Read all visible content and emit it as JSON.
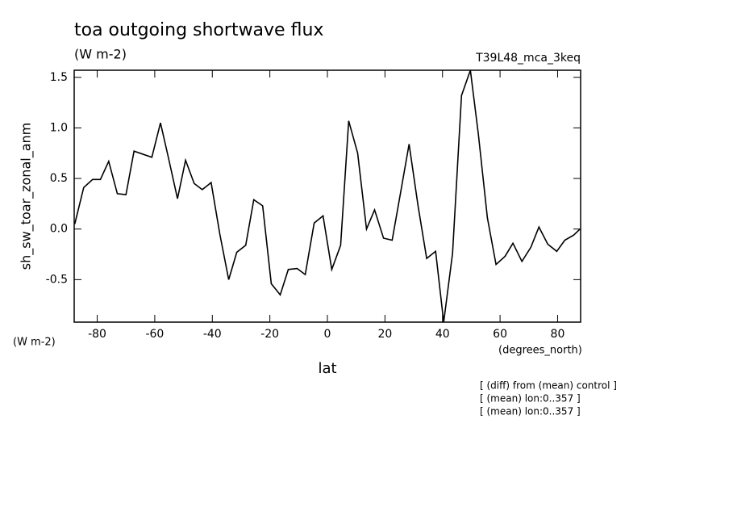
{
  "chart_data": {
    "type": "line",
    "title": "toa outgoing shortwave flux",
    "subtitle": "(W m-2)",
    "run_label": "T39L48_mca_3keq",
    "y_label": "sh_sw_toar_zonal_anm",
    "y_unit": "(W m-2)",
    "x_label": "lat",
    "x_unit": "(degrees_north)",
    "notes": [
      "[ (diff) from (mean) control ]",
      "[ (mean) lon:0..357 ]",
      "[ (mean) lon:0..357 ]"
    ],
    "color": "#000000",
    "x": [
      -87.8,
      -84.7,
      -81.6,
      -78.9,
      -76.0,
      -73.0,
      -70.0,
      -67.2,
      -61.0,
      -58.0,
      -55.2,
      -52.1,
      -49.3,
      -46.3,
      -43.5,
      -40.4,
      -37.4,
      -34.3,
      -31.5,
      -28.4,
      -25.6,
      -22.5,
      -19.5,
      -16.4,
      -13.6,
      -10.5,
      -7.7,
      -4.6,
      -1.5,
      1.5,
      4.6,
      7.4,
      10.5,
      13.6,
      16.4,
      19.5,
      22.5,
      25.3,
      28.4,
      31.5,
      34.5,
      37.6,
      40.4,
      43.5,
      46.6,
      49.7,
      52.5,
      55.6,
      58.6,
      61.7,
      64.5,
      67.6,
      70.7,
      73.5,
      76.6,
      79.7,
      82.5,
      85.6,
      87.8
    ],
    "values": [
      0.05,
      0.41,
      0.49,
      0.49,
      0.67,
      0.35,
      0.34,
      0.77,
      0.71,
      1.05,
      0.7,
      0.3,
      0.68,
      0.45,
      0.39,
      0.46,
      -0.05,
      -0.5,
      -0.23,
      -0.16,
      0.29,
      0.23,
      -0.54,
      -0.65,
      -0.4,
      -0.39,
      -0.45,
      0.06,
      0.13,
      -0.4,
      -0.16,
      1.07,
      0.75,
      0.0,
      0.19,
      -0.09,
      -0.11,
      0.34,
      0.84,
      0.23,
      -0.29,
      -0.22,
      -0.92,
      -0.24,
      1.32,
      1.57,
      0.93,
      0.11,
      -0.35,
      -0.27,
      -0.14,
      -0.32,
      -0.18,
      0.02,
      -0.15,
      -0.22,
      -0.11,
      -0.06,
      0.0
    ],
    "xlim": [
      -88,
      88
    ],
    "ylim": [
      -0.92,
      1.57
    ],
    "xticks": [
      -80,
      -60,
      -40,
      -20,
      0,
      20,
      40,
      60,
      80
    ],
    "yticks": [
      -0.5,
      {
        "value": 0,
        "label": "0.0"
      },
      0.5,
      {
        "value": 1,
        "label": "1.0"
      },
      1.5
    ]
  }
}
